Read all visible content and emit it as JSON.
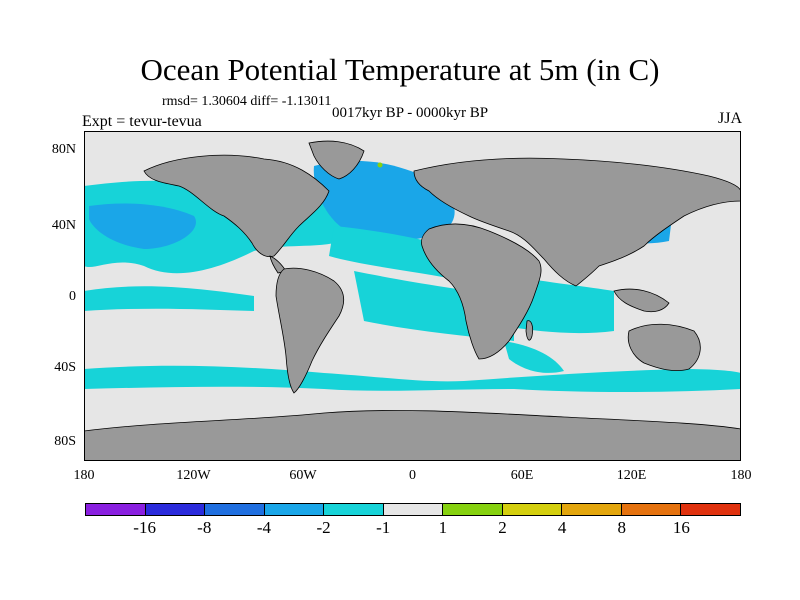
{
  "title": "Ocean Potential Temperature at 5m (in C)",
  "stats": "rmsd= 1.30604 diff= -1.13011",
  "period": "0017kyr BP - 0000kyr BP",
  "experiment": "Expt = tevur-tevua",
  "season": "JJA",
  "lat_labels": [
    "80N",
    "40N",
    "0",
    "40S",
    "80S"
  ],
  "lon_labels": [
    "180",
    "120W",
    "60W",
    "0",
    "60E",
    "120E",
    "180"
  ],
  "colorbar": {
    "colors": [
      "#8a1fe0",
      "#2b2bdc",
      "#1f6fe0",
      "#1aa6e8",
      "#17d3d8",
      "#e6e6e6",
      "#86d10f",
      "#d4cf0e",
      "#e3a60d",
      "#e5720e",
      "#e0320e"
    ],
    "labels": [
      "-16",
      "-8",
      "-4",
      "-2",
      "-1",
      "1",
      "2",
      "4",
      "8",
      "16"
    ]
  },
  "colors": {
    "land": "#999999",
    "neutral": "#e6e6e6",
    "cyan": "#17d3d8",
    "light_blue": "#1aa6e8",
    "blue": "#1f6fe0",
    "dark_blue": "#2b2bdc",
    "green": "#86d10f"
  }
}
